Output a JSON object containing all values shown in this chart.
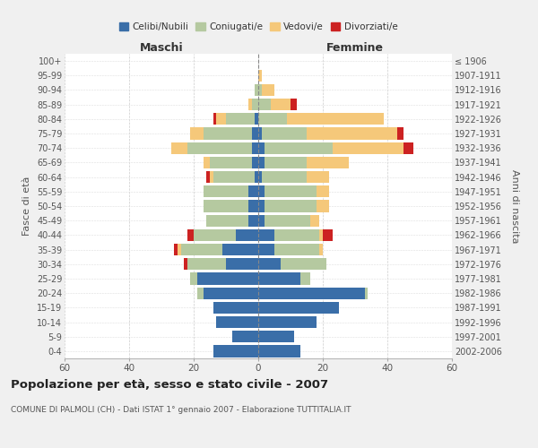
{
  "age_groups": [
    "0-4",
    "5-9",
    "10-14",
    "15-19",
    "20-24",
    "25-29",
    "30-34",
    "35-39",
    "40-44",
    "45-49",
    "50-54",
    "55-59",
    "60-64",
    "65-69",
    "70-74",
    "75-79",
    "80-84",
    "85-89",
    "90-94",
    "95-99",
    "100+"
  ],
  "birth_years": [
    "2002-2006",
    "1997-2001",
    "1992-1996",
    "1987-1991",
    "1982-1986",
    "1977-1981",
    "1972-1976",
    "1967-1971",
    "1962-1966",
    "1957-1961",
    "1952-1956",
    "1947-1951",
    "1942-1946",
    "1937-1941",
    "1932-1936",
    "1927-1931",
    "1922-1926",
    "1917-1921",
    "1912-1916",
    "1907-1911",
    "≤ 1906"
  ],
  "maschi": {
    "celibi": [
      14,
      8,
      13,
      14,
      17,
      19,
      10,
      11,
      7,
      3,
      3,
      3,
      1,
      2,
      2,
      2,
      1,
      0,
      0,
      0,
      0
    ],
    "coniugati": [
      0,
      0,
      0,
      0,
      2,
      2,
      12,
      13,
      13,
      13,
      14,
      14,
      13,
      13,
      20,
      15,
      9,
      2,
      1,
      0,
      0
    ],
    "vedovi": [
      0,
      0,
      0,
      0,
      0,
      0,
      0,
      1,
      0,
      0,
      0,
      0,
      1,
      2,
      5,
      4,
      3,
      1,
      0,
      0,
      0
    ],
    "divorziati": [
      0,
      0,
      0,
      0,
      0,
      0,
      1,
      1,
      2,
      0,
      0,
      0,
      1,
      0,
      0,
      0,
      1,
      0,
      0,
      0,
      0
    ]
  },
  "femmine": {
    "nubili": [
      13,
      11,
      18,
      25,
      33,
      13,
      7,
      5,
      5,
      2,
      2,
      2,
      1,
      2,
      2,
      1,
      0,
      0,
      0,
      0,
      0
    ],
    "coniugate": [
      0,
      0,
      0,
      0,
      1,
      3,
      14,
      14,
      14,
      14,
      16,
      16,
      14,
      13,
      21,
      14,
      9,
      4,
      1,
      0,
      0
    ],
    "vedove": [
      0,
      0,
      0,
      0,
      0,
      0,
      0,
      1,
      1,
      3,
      4,
      4,
      7,
      13,
      22,
      28,
      30,
      6,
      4,
      1,
      0
    ],
    "divorziate": [
      0,
      0,
      0,
      0,
      0,
      0,
      0,
      0,
      3,
      0,
      0,
      0,
      0,
      0,
      3,
      2,
      0,
      2,
      0,
      0,
      0
    ]
  },
  "colors": {
    "celibi": "#3a6ea8",
    "coniugati": "#b5c9a0",
    "vedovi": "#f5c87a",
    "divorziati": "#cc2222"
  },
  "xlim": 60,
  "title": "Popolazione per età, sesso e stato civile - 2007",
  "subtitle": "COMUNE DI PALMOLI (CH) - Dati ISTAT 1° gennaio 2007 - Elaborazione TUTTITALIA.IT",
  "xlabel_left": "Maschi",
  "xlabel_right": "Femmine",
  "ylabel_left": "Fasce di età",
  "ylabel_right": "Anni di nascita",
  "legend_labels": [
    "Celibi/Nubili",
    "Coniugati/e",
    "Vedovi/e",
    "Divorziati/e"
  ],
  "bg_color": "#f0f0f0",
  "plot_bg_color": "#ffffff"
}
